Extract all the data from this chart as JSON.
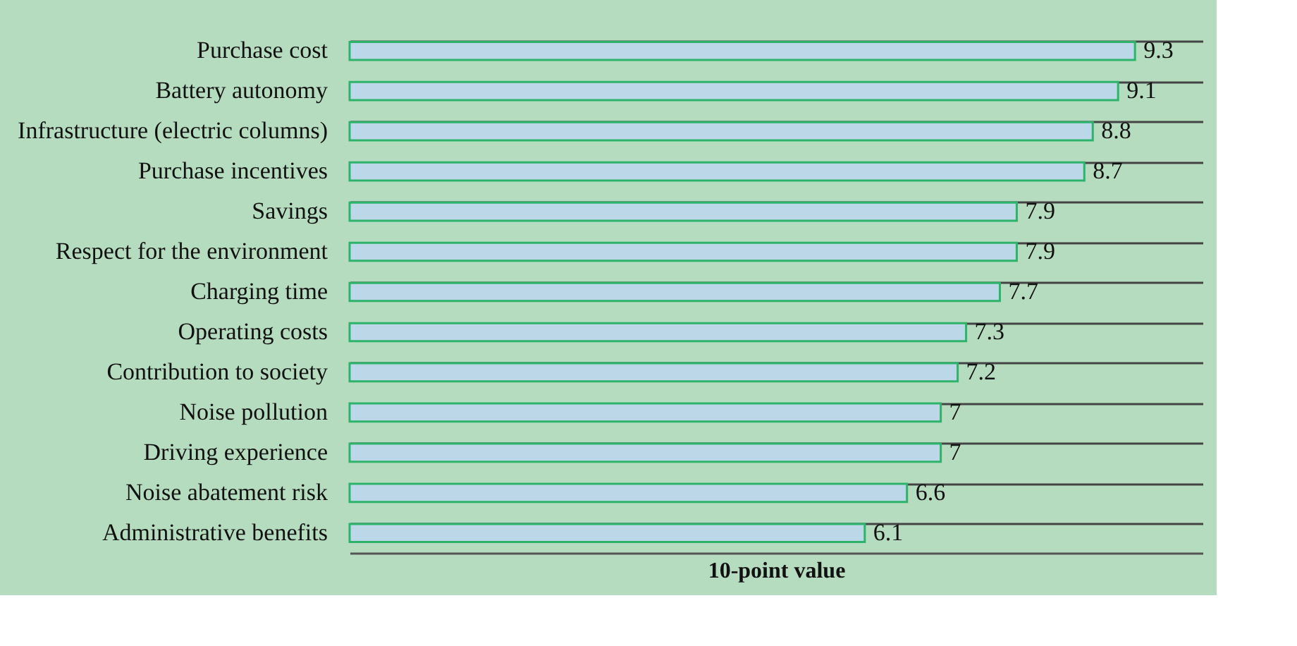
{
  "chart_data": {
    "type": "bar",
    "orientation": "horizontal",
    "xlabel": "10-point value",
    "categories": [
      "Purchase cost",
      "Battery autonomy",
      "Infrastructure (electric columns)",
      "Purchase incentives",
      "Savings",
      "Respect for the environment",
      "Charging time",
      "Operating costs",
      "Contribution to society",
      "Noise pollution",
      "Driving experience",
      "Noise abatement risk",
      "Administrative benefits"
    ],
    "values": [
      9.3,
      9.1,
      8.8,
      8.7,
      7.9,
      7.9,
      7.7,
      7.3,
      7.2,
      7,
      7,
      6.6,
      6.1
    ],
    "color": "#bcd7e8",
    "xlim": [
      0,
      10.1
    ],
    "data_labels": true,
    "grid": "y",
    "tick_labels": "y"
  }
}
